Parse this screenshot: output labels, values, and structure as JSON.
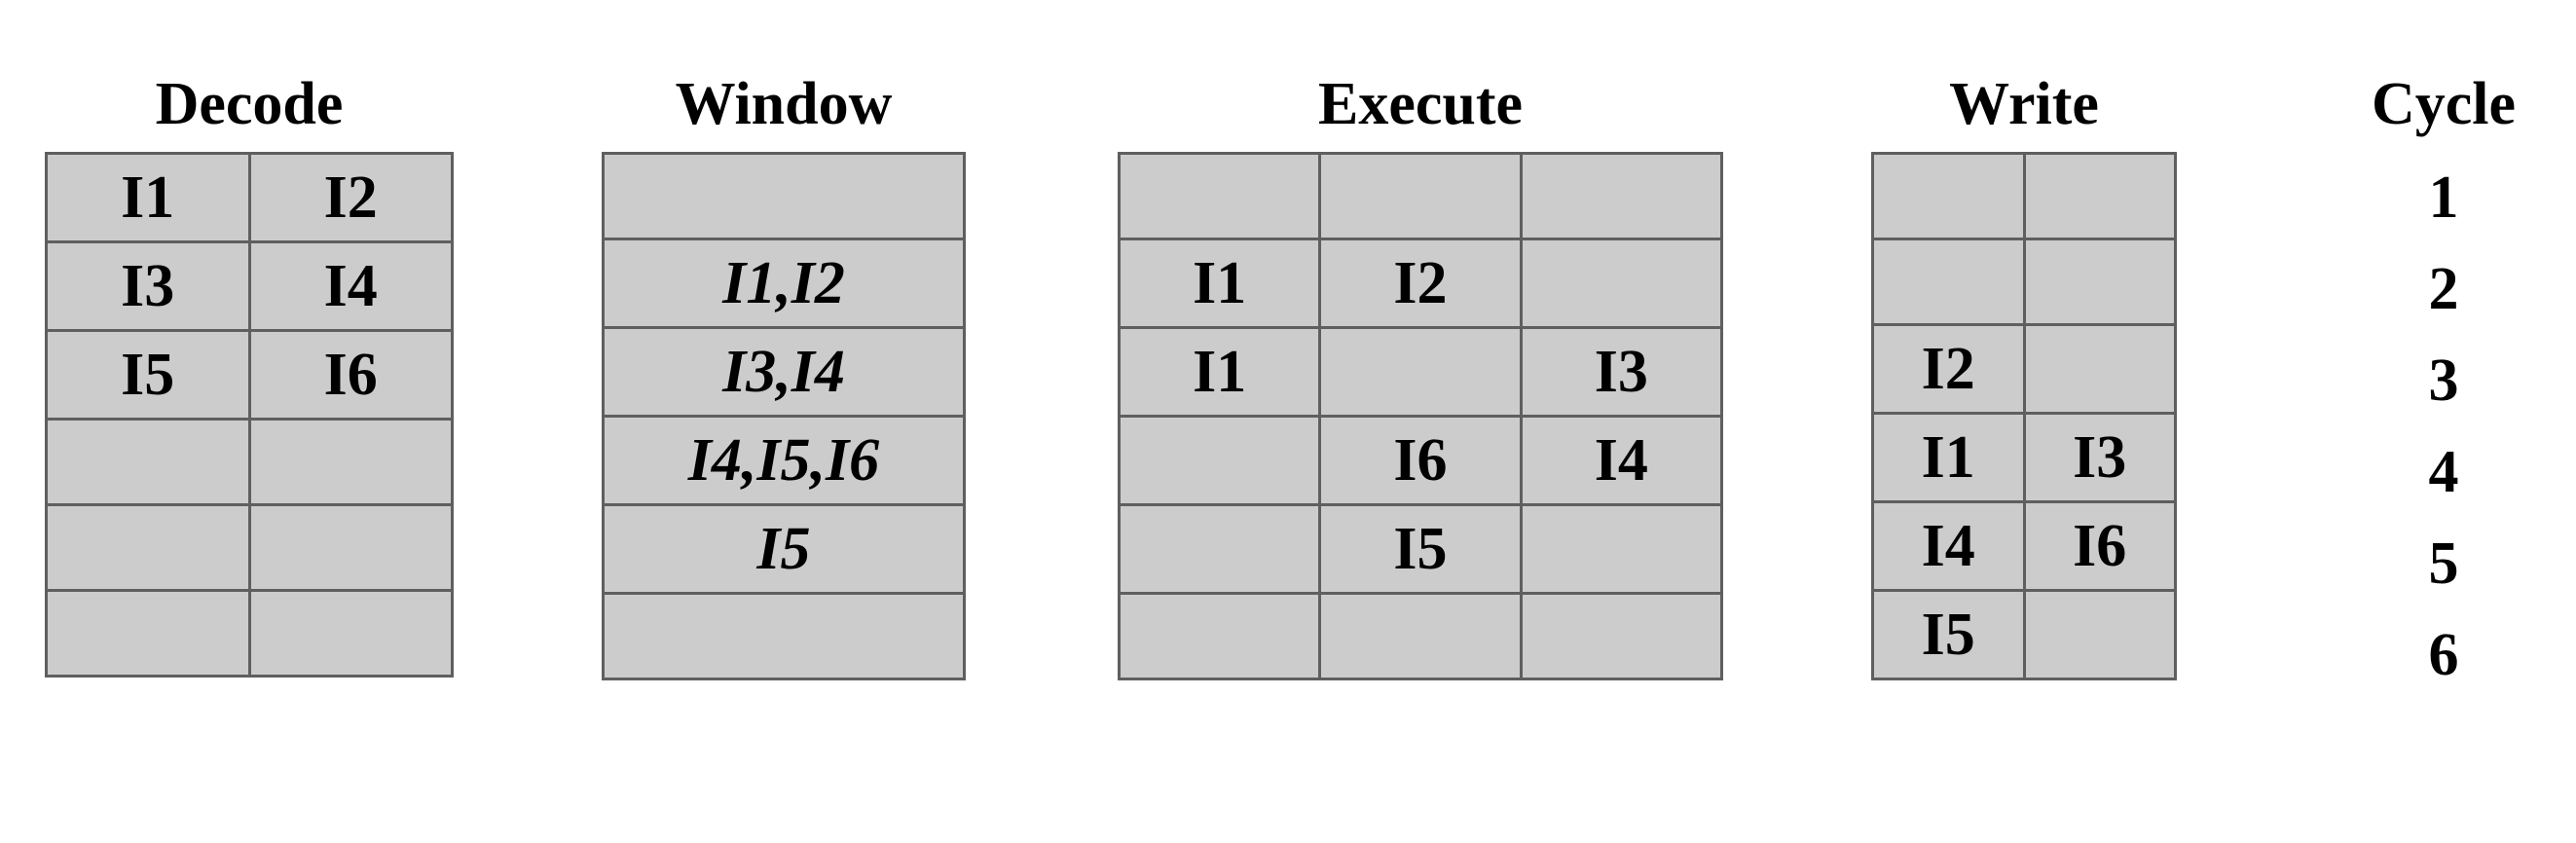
{
  "decode": {
    "title": "Decode",
    "rows": [
      [
        "I1",
        "I2"
      ],
      [
        "I3",
        "I4"
      ],
      [
        "I5",
        "I6"
      ],
      [
        "",
        ""
      ],
      [
        "",
        ""
      ],
      [
        "",
        ""
      ]
    ]
  },
  "window": {
    "title": "Window",
    "rows": [
      [
        ""
      ],
      [
        "I1,I2"
      ],
      [
        "I3,I4"
      ],
      [
        "I4,I5,I6"
      ],
      [
        "I5"
      ],
      [
        ""
      ]
    ]
  },
  "execute": {
    "title": "Execute",
    "rows": [
      [
        "",
        "",
        ""
      ],
      [
        "I1",
        "I2",
        ""
      ],
      [
        "I1",
        "",
        "I3"
      ],
      [
        "",
        "I6",
        "I4"
      ],
      [
        "",
        "I5",
        ""
      ],
      [
        "",
        "",
        ""
      ]
    ]
  },
  "write": {
    "title": "Write",
    "rows": [
      [
        "",
        ""
      ],
      [
        "",
        ""
      ],
      [
        "I2",
        ""
      ],
      [
        "I1",
        "I3"
      ],
      [
        "I4",
        "I6"
      ],
      [
        "I5",
        ""
      ]
    ]
  },
  "cycle": {
    "title": "Cycle",
    "values": [
      "1",
      "2",
      "3",
      "4",
      "5",
      "6"
    ]
  },
  "colors": {
    "cell_fill": "#cccccc",
    "grid_line": "#5f5f5f"
  }
}
